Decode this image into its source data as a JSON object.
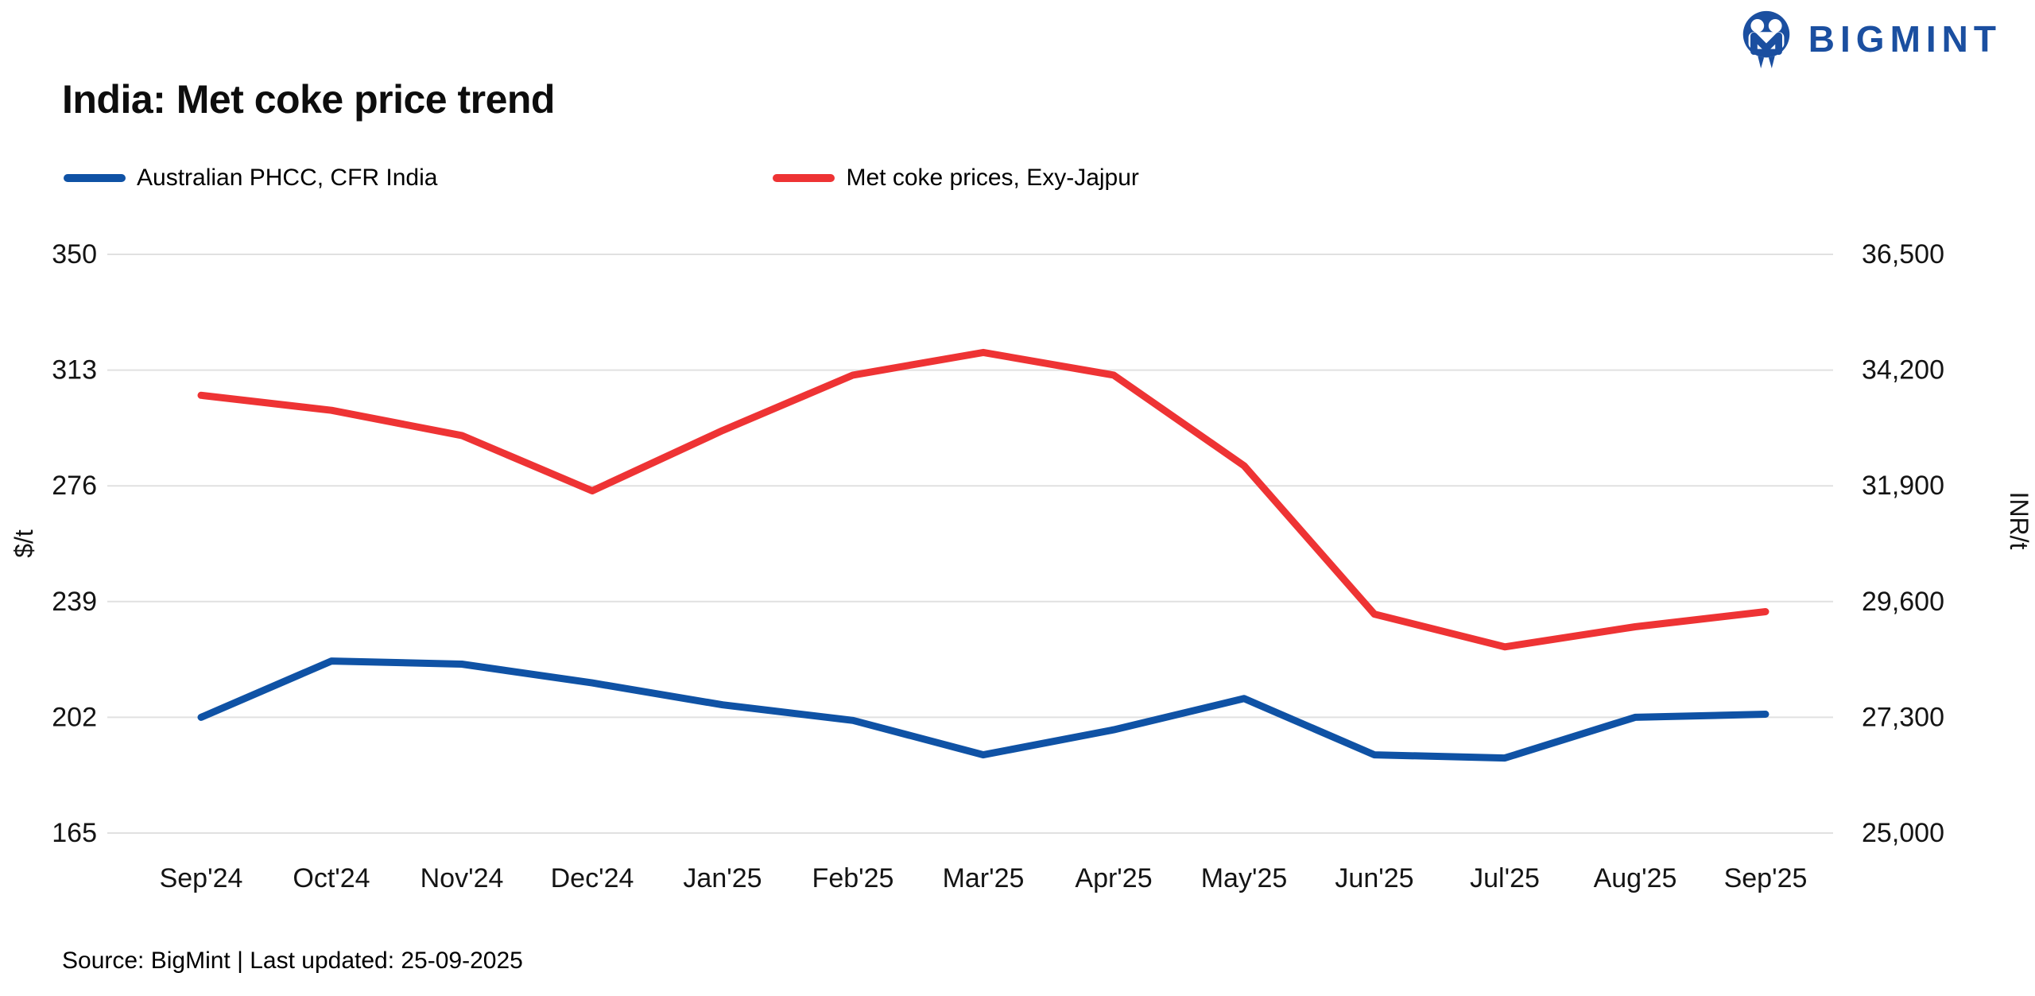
{
  "logo": {
    "text": "BIGMINT",
    "color": "#1b4fa0"
  },
  "title": "India: Met coke price trend",
  "legend": [
    {
      "label": "Australian PHCC, CFR India",
      "color": "#0f52a5"
    },
    {
      "label": "Met coke prices, Exy-Jajpur",
      "color": "#ee3334"
    }
  ],
  "source_note": "Source: BigMint | Last updated: 25-09-2025",
  "chart_data": {
    "type": "line",
    "categories": [
      "Sep'24",
      "Oct'24",
      "Nov'24",
      "Dec'24",
      "Jan'25",
      "Feb'25",
      "Mar'25",
      "Apr'25",
      "May'25",
      "Jun'25",
      "Jul'25",
      "Aug'25",
      "Sep'25"
    ],
    "series": [
      {
        "name": "Australian PHCC, CFR India",
        "axis": "left",
        "unit": "$/t",
        "color": "#0f52a5",
        "values": [
          202,
          220,
          219,
          213,
          206,
          201,
          190,
          198,
          208,
          190,
          189,
          202,
          203
        ]
      },
      {
        "name": "Met coke prices, Exy-Jajpur",
        "axis": "right",
        "unit": "INR/t",
        "color": "#ee3334",
        "values": [
          33700,
          33400,
          32900,
          31800,
          33000,
          34100,
          34550,
          34100,
          32300,
          29350,
          28700,
          29100,
          29400
        ]
      }
    ],
    "left_axis": {
      "title": "$/t",
      "ticks": [
        350,
        313,
        276,
        239,
        202,
        165
      ],
      "min": 165,
      "max": 350
    },
    "right_axis": {
      "title": "INR/t",
      "ticks": [
        36500,
        34200,
        31900,
        29600,
        27300,
        25000
      ],
      "tick_labels": [
        "36,500",
        "34,200",
        "31,900",
        "29,600",
        "27,300",
        "25,000"
      ],
      "min": 25000,
      "max": 36500
    },
    "grid": true,
    "grid_color": "#e1e1e1",
    "legend_position": "top-left"
  }
}
